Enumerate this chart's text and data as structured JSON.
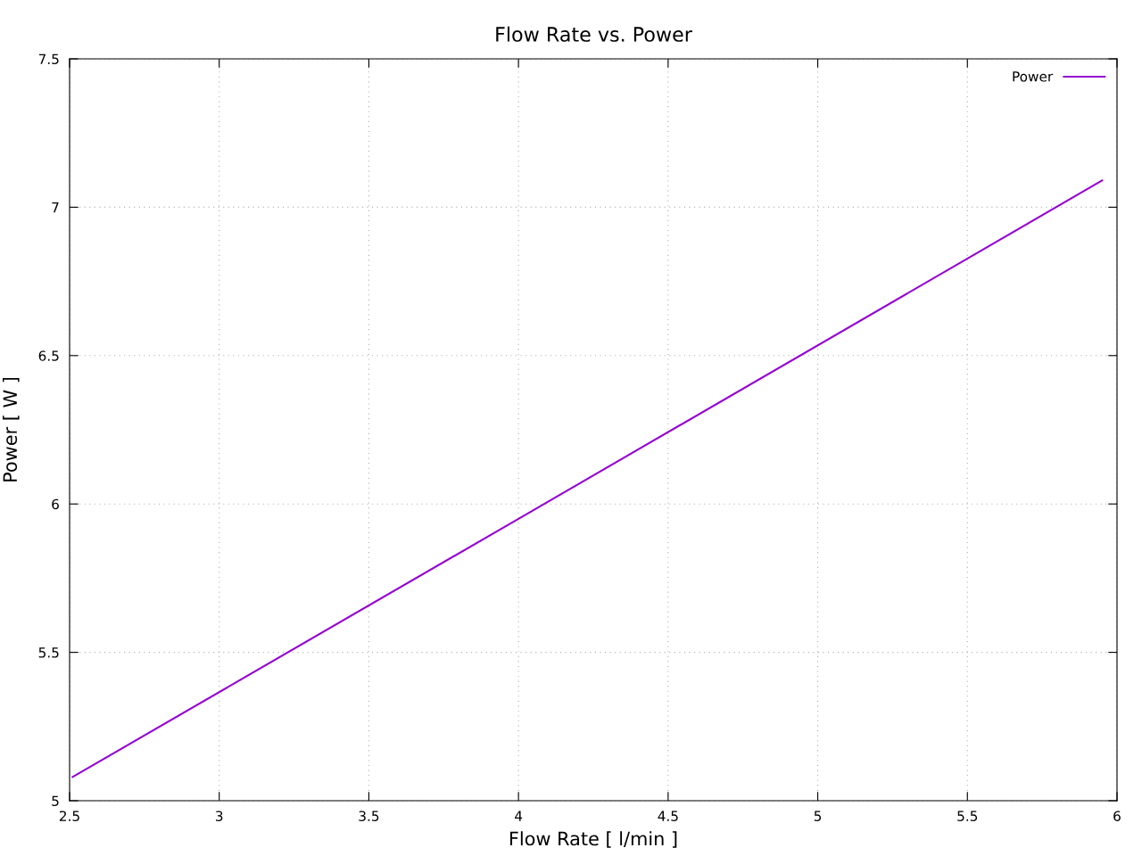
{
  "chart_data": {
    "type": "line",
    "title": "Flow Rate vs. Power",
    "xlabel": "Flow Rate [ l/min ]",
    "ylabel": "Power [ W ]",
    "series": [
      {
        "name": "Power",
        "color": "#9400d3",
        "x": [
          2.51,
          4,
          5.95
        ],
        "values": [
          5.08,
          5.95,
          7.09
        ]
      }
    ],
    "xlim": [
      2.5,
      6
    ],
    "xticks": [
      2.5,
      3,
      3.5,
      4,
      4.5,
      5,
      5.5,
      6
    ],
    "ylim": [
      5,
      7.5
    ],
    "yticks": [
      5,
      5.5,
      6,
      6.5,
      7,
      7.5
    ],
    "grid": true,
    "legend": "top right",
    "line_style": "solid",
    "marker": "none"
  }
}
